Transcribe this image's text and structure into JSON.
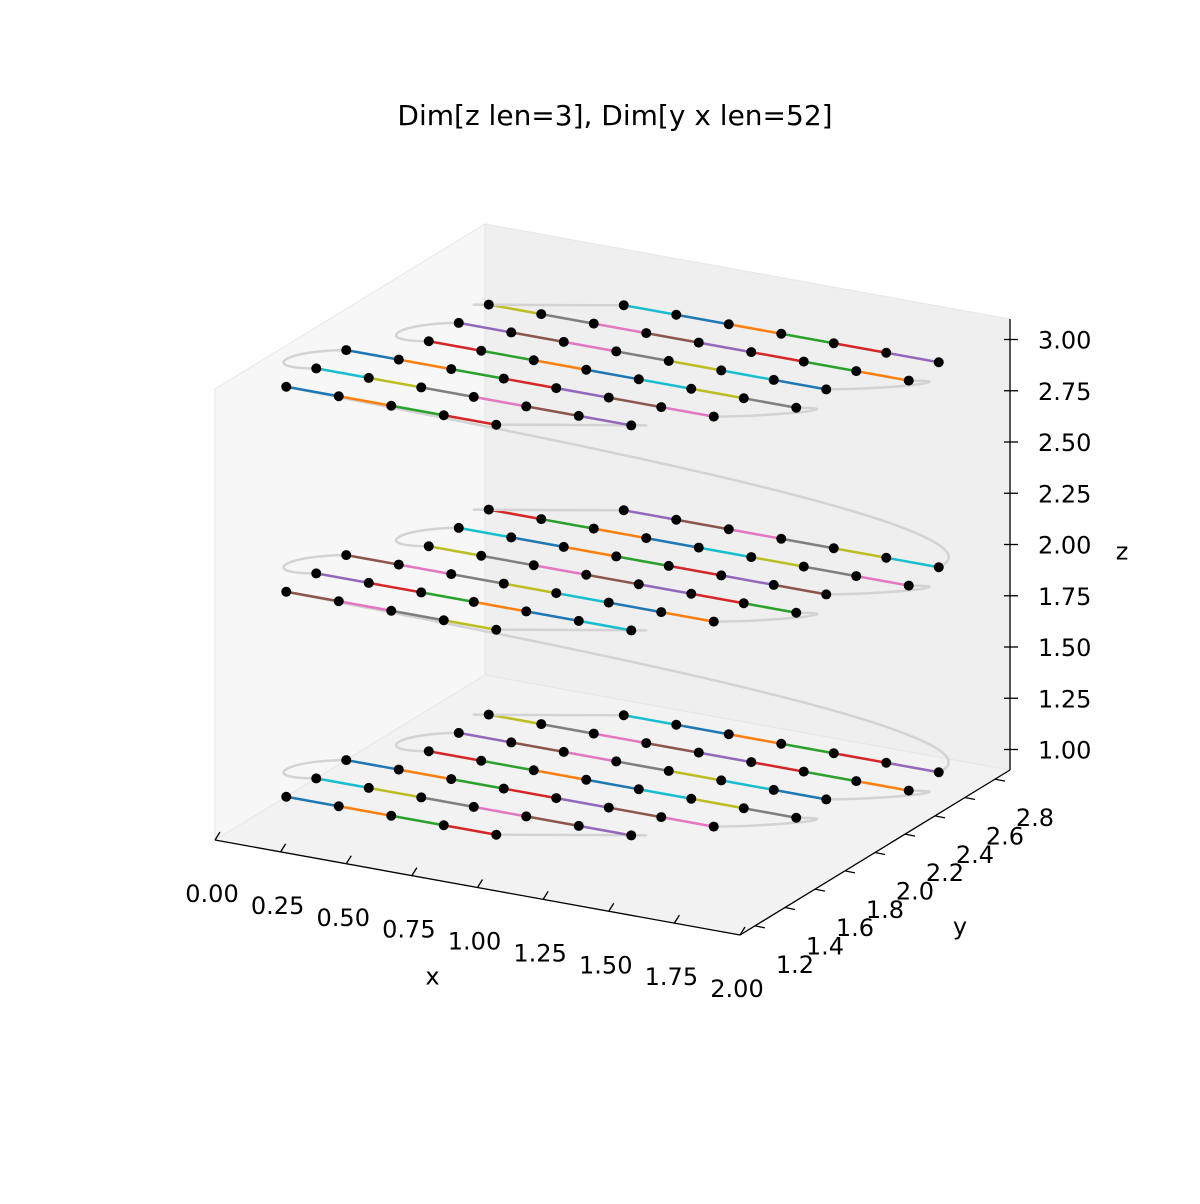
{
  "chart_data": {
    "type": "scatter3d",
    "title": "Dim[z len=3], Dim[y x len=52]",
    "x_label": "x",
    "y_label": "y",
    "z_label": "z",
    "xlim": [
      0,
      2
    ],
    "ylim": [
      1.1,
      2.9
    ],
    "zlim": [
      0.9,
      3.1
    ],
    "xticks": [
      {
        "value": 0,
        "label": "0.00"
      },
      {
        "value": 0.25,
        "label": "0.25"
      },
      {
        "value": 0.5,
        "label": "0.50"
      },
      {
        "value": 0.75,
        "label": "0.75"
      },
      {
        "value": 1,
        "label": "1.00"
      },
      {
        "value": 1.25,
        "label": "1.25"
      },
      {
        "value": 1.5,
        "label": "1.50"
      },
      {
        "value": 1.75,
        "label": "1.75"
      },
      {
        "value": 2,
        "label": "2.00"
      }
    ],
    "yticks": [
      1.2,
      1.4,
      1.6,
      1.8,
      {
        "value": 2,
        "label": "2.0"
      },
      2.2,
      2.4,
      2.6,
      2.8
    ],
    "zticks": [
      {
        "value": 1,
        "label": "1.00"
      },
      {
        "value": 1.25,
        "label": "1.25"
      },
      {
        "value": 1.5,
        "label": "1.50"
      },
      {
        "value": 1.75,
        "label": "1.75"
      },
      {
        "value": 2,
        "label": "2.00"
      },
      {
        "value": 2.25,
        "label": "2.25"
      },
      {
        "value": 2.5,
        "label": "2.50"
      },
      {
        "value": 2.75,
        "label": "2.75"
      },
      {
        "value": 3,
        "label": "3.00"
      }
    ],
    "z_levels": [
      1,
      2,
      3
    ],
    "rows": [
      {
        "y": 1.4,
        "x": [
          0.1,
          0.3,
          0.5,
          0.7,
          0.9
        ]
      },
      {
        "y": 1.6,
        "x": [
          0.1,
          0.3,
          0.5,
          0.7,
          0.9,
          1.1,
          1.3
        ]
      },
      {
        "y": 1.8,
        "x": [
          0.1,
          0.3,
          0.5,
          0.7,
          0.9,
          1.1,
          1.3,
          1.5
        ]
      },
      {
        "y": 2.0,
        "x": [
          0.3,
          0.5,
          0.7,
          0.9,
          1.1,
          1.3,
          1.5,
          1.7
        ]
      },
      {
        "y": 2.2,
        "x": [
          0.3,
          0.5,
          0.7,
          0.9,
          1.1,
          1.3,
          1.5,
          1.7
        ]
      },
      {
        "y": 2.4,
        "x": [
          0.3,
          0.5,
          0.7,
          0.9,
          1.1,
          1.3,
          1.5,
          1.7,
          1.9
        ]
      },
      {
        "y": 2.6,
        "x": [
          0.7,
          0.9,
          1.1,
          1.3,
          1.5,
          1.7,
          1.9
        ]
      }
    ],
    "point_color": "#000000",
    "path_color": "#d3d3d3",
    "segment_colors": [
      "#1f77b4",
      "#ff7f0e",
      "#2ca02c",
      "#d62728",
      "#9467bd",
      "#8c564b",
      "#e377c2",
      "#7f7f7f",
      "#bcbd22",
      "#17becf"
    ]
  }
}
